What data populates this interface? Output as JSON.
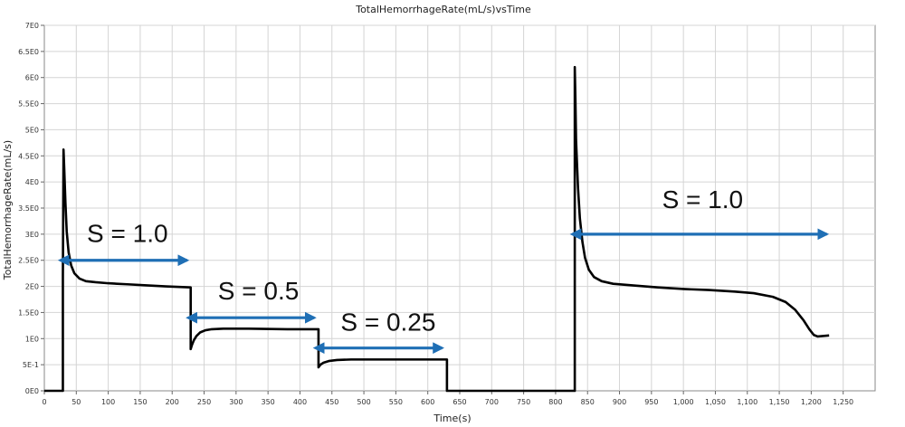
{
  "chart_data": {
    "type": "line",
    "title": "TotalHemorrhageRate(mL/s)vsTime",
    "xlabel": "Time(s)",
    "ylabel": "TotalHemorrhageRate(mL/s)",
    "xlim": [
      0,
      1300
    ],
    "ylim": [
      0,
      7
    ],
    "grid": true,
    "x_ticks": [
      {
        "value": 0,
        "label": "0"
      },
      {
        "value": 50,
        "label": "50"
      },
      {
        "value": 100,
        "label": "100"
      },
      {
        "value": 150,
        "label": "150"
      },
      {
        "value": 200,
        "label": "200"
      },
      {
        "value": 250,
        "label": "250"
      },
      {
        "value": 300,
        "label": "300"
      },
      {
        "value": 350,
        "label": "350"
      },
      {
        "value": 400,
        "label": "400"
      },
      {
        "value": 450,
        "label": "450"
      },
      {
        "value": 500,
        "label": "500"
      },
      {
        "value": 550,
        "label": "550"
      },
      {
        "value": 600,
        "label": "600"
      },
      {
        "value": 650,
        "label": "650"
      },
      {
        "value": 700,
        "label": "700"
      },
      {
        "value": 750,
        "label": "750"
      },
      {
        "value": 800,
        "label": "800"
      },
      {
        "value": 850,
        "label": "850"
      },
      {
        "value": 900,
        "label": "900"
      },
      {
        "value": 950,
        "label": "950"
      },
      {
        "value": 1000,
        "label": "1,000"
      },
      {
        "value": 1050,
        "label": "1,050"
      },
      {
        "value": 1100,
        "label": "1,100"
      },
      {
        "value": 1150,
        "label": "1,150"
      },
      {
        "value": 1200,
        "label": "1,200"
      },
      {
        "value": 1250,
        "label": "1,250"
      }
    ],
    "y_ticks": [
      {
        "value": 0,
        "label": "0E0"
      },
      {
        "value": 0.5,
        "label": "5E-1"
      },
      {
        "value": 1,
        "label": "1E0"
      },
      {
        "value": 1.5,
        "label": "1.5E0"
      },
      {
        "value": 2,
        "label": "2E0"
      },
      {
        "value": 2.5,
        "label": "2.5E0"
      },
      {
        "value": 3,
        "label": "3E0"
      },
      {
        "value": 3.5,
        "label": "3.5E0"
      },
      {
        "value": 4,
        "label": "4E0"
      },
      {
        "value": 4.5,
        "label": "4.5E0"
      },
      {
        "value": 5,
        "label": "5E0"
      },
      {
        "value": 5.5,
        "label": "5.5E0"
      },
      {
        "value": 6,
        "label": "6E0"
      },
      {
        "value": 6.5,
        "label": "6.5E0"
      },
      {
        "value": 7,
        "label": "7E0"
      }
    ],
    "series": [
      {
        "color": "#000000",
        "x": [
          0,
          29,
          29,
          30,
          31,
          33,
          35,
          38,
          42,
          47,
          55,
          65,
          80,
          100,
          130,
          160,
          190,
          229,
          229,
          231,
          234,
          238,
          244,
          252,
          262,
          280,
          320,
          380,
          429,
          429,
          432,
          437,
          445,
          458,
          480,
          520,
          580,
          630,
          630,
          830,
          830,
          831,
          832,
          835,
          838,
          842,
          846,
          852,
          860,
          872,
          890,
          920,
          960,
          1000,
          1040,
          1080,
          1110,
          1140,
          1160,
          1175,
          1188,
          1197,
          1204,
          1210,
          1218,
          1228
        ],
        "y": [
          0,
          0,
          2.2,
          4.62,
          4.3,
          3.6,
          3.05,
          2.65,
          2.4,
          2.25,
          2.15,
          2.1,
          2.08,
          2.06,
          2.04,
          2.02,
          2.0,
          1.98,
          0.8,
          0.88,
          0.97,
          1.05,
          1.12,
          1.16,
          1.18,
          1.19,
          1.19,
          1.18,
          1.18,
          0.45,
          0.5,
          0.54,
          0.57,
          0.59,
          0.6,
          0.6,
          0.6,
          0.6,
          0,
          0,
          6.2,
          5.6,
          4.8,
          3.9,
          3.3,
          2.85,
          2.55,
          2.32,
          2.18,
          2.1,
          2.05,
          2.02,
          1.98,
          1.95,
          1.93,
          1.9,
          1.87,
          1.8,
          1.7,
          1.55,
          1.35,
          1.18,
          1.07,
          1.04,
          1.05,
          1.06
        ]
      }
    ],
    "annotations": [
      {
        "text": "S = 1.0",
        "x_start": 30,
        "x_end": 229,
        "y": 2.5,
        "text_x": 130,
        "text_y": 2.85,
        "color": "#1f6fb5"
      },
      {
        "text": "S = 0.5",
        "x_start": 230,
        "x_end": 428,
        "y": 1.4,
        "text_x": 335,
        "text_y": 1.75,
        "color": "#1f6fb5"
      },
      {
        "text": "S = 0.25",
        "x_start": 429,
        "x_end": 628,
        "y": 0.82,
        "text_x": 538,
        "text_y": 1.15,
        "color": "#1f6fb5"
      },
      {
        "text": "S = 1.0",
        "x_start": 831,
        "x_end": 1230,
        "y": 3.0,
        "text_x": 1030,
        "text_y": 3.5,
        "color": "#1f6fb5"
      }
    ]
  }
}
